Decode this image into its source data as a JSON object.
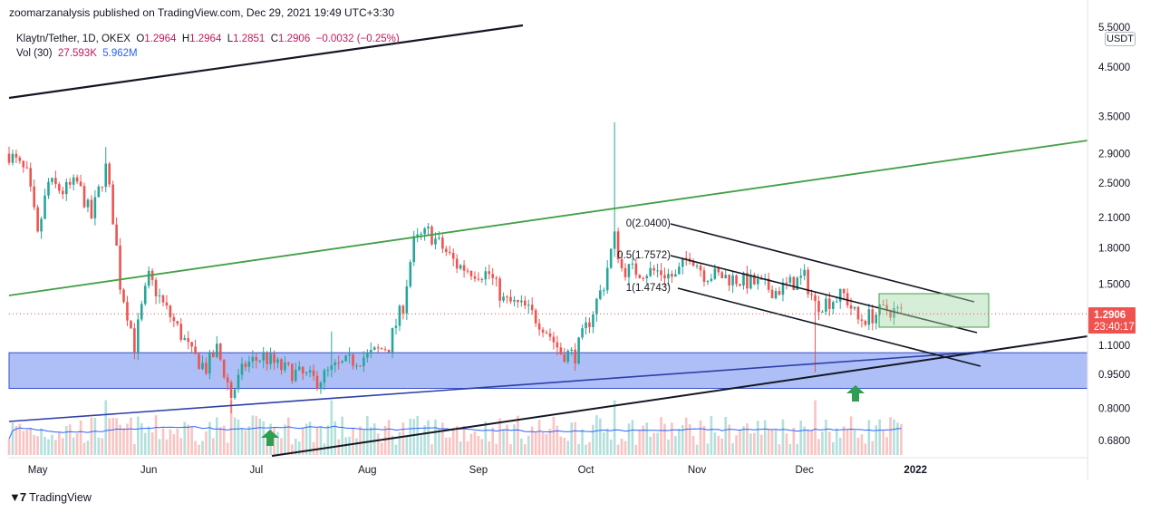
{
  "header": {
    "published": "zoomarzanalysis published on TradingView.com, Dec 29, 2021 19:49 UTC+3:30"
  },
  "legend": {
    "symbol": "Klaytn/Tether, 1D, OKEX",
    "open_k": "O",
    "open_v": "1.2964",
    "high_k": "H",
    "high_v": "1.2964",
    "low_k": "L",
    "low_v": "1.2851",
    "close_k": "C",
    "close_v": "1.2906",
    "change": "−0.0032 (−0.25%)",
    "vol_label": "Vol (30)",
    "vol_value": "27.593K",
    "vol_ma": "5.962M"
  },
  "currency": "USDT",
  "brand": "TradingView",
  "colors": {
    "up": "#26a69a",
    "down": "#ef5350",
    "zone": "#9fb4f5",
    "green_line": "#43a047",
    "blue_line": "#2e3fa8",
    "vol_ma": "#2962ff",
    "price_tag": "#ef5350"
  },
  "chart_data": {
    "type": "candlestick",
    "y_scale": "log",
    "ylim": [
      0.61,
      5.6
    ],
    "x_tick_labels": [
      "May",
      "Jun",
      "Jul",
      "Aug",
      "Sep",
      "Oct",
      "Nov",
      "Dec",
      "2022"
    ],
    "y_tick_labels": [
      "5.5000",
      "4.5000",
      "3.5000",
      "2.9000",
      "2.5000",
      "2.1000",
      "1.8000",
      "1.5000",
      "1.1000",
      "0.9500",
      "0.8000",
      "0.6800"
    ],
    "y_tick_values": [
      5.5,
      4.5,
      3.5,
      2.9,
      2.5,
      2.1,
      1.8,
      1.5,
      1.1,
      0.95,
      0.8,
      0.68
    ],
    "last_price": {
      "label": "1.2906",
      "value": 1.2906,
      "countdown": "23:40:17"
    },
    "fibonacci": [
      {
        "label": "0(2.0400)",
        "value": 2.04
      },
      {
        "label": "0.5(1.7572)",
        "value": 1.7572
      },
      {
        "label": "1(1.4743)",
        "value": 1.4743
      }
    ],
    "support_zone": {
      "low": 0.885,
      "high": 1.06
    },
    "price_path": [
      [
        "2021-04-23",
        2.9
      ],
      [
        "2021-04-28",
        2.6
      ],
      [
        "2021-05-01",
        1.9
      ],
      [
        "2021-05-04",
        2.5
      ],
      [
        "2021-05-08",
        2.4
      ],
      [
        "2021-05-12",
        2.5
      ],
      [
        "2021-05-16",
        2.1
      ],
      [
        "2021-05-20",
        2.7
      ],
      [
        "2021-05-24",
        1.5
      ],
      [
        "2021-05-28",
        1.1
      ],
      [
        "2021-06-01",
        1.55
      ],
      [
        "2021-06-05",
        1.35
      ],
      [
        "2021-06-09",
        1.2
      ],
      [
        "2021-06-13",
        1.05
      ],
      [
        "2021-06-17",
        0.98
      ],
      [
        "2021-06-20",
        1.08
      ],
      [
        "2021-06-24",
        0.85
      ],
      [
        "2021-06-28",
        1.0
      ],
      [
        "2021-07-03",
        1.04
      ],
      [
        "2021-07-08",
        0.98
      ],
      [
        "2021-07-13",
        0.95
      ],
      [
        "2021-07-18",
        0.92
      ],
      [
        "2021-07-23",
        0.98
      ],
      [
        "2021-07-28",
        1.02
      ],
      [
        "2021-08-02",
        1.05
      ],
      [
        "2021-08-07",
        1.1
      ],
      [
        "2021-08-11",
        1.35
      ],
      [
        "2021-08-14",
        1.85
      ],
      [
        "2021-08-18",
        1.95
      ],
      [
        "2021-08-22",
        1.8
      ],
      [
        "2021-08-26",
        1.65
      ],
      [
        "2021-08-31",
        1.6
      ],
      [
        "2021-09-04",
        1.58
      ],
      [
        "2021-09-08",
        1.38
      ],
      [
        "2021-09-14",
        1.33
      ],
      [
        "2021-09-19",
        1.22
      ],
      [
        "2021-09-24",
        1.06
      ],
      [
        "2021-09-28",
        1.05
      ],
      [
        "2021-10-02",
        1.25
      ],
      [
        "2021-10-06",
        1.5
      ],
      [
        "2021-10-09",
        1.9
      ],
      [
        "2021-10-11",
        1.62
      ],
      [
        "2021-10-16",
        1.6
      ],
      [
        "2021-10-21",
        1.6
      ],
      [
        "2021-10-26",
        1.55
      ],
      [
        "2021-10-30",
        1.75
      ],
      [
        "2021-11-03",
        1.58
      ],
      [
        "2021-11-08",
        1.56
      ],
      [
        "2021-11-13",
        1.53
      ],
      [
        "2021-11-18",
        1.5
      ],
      [
        "2021-11-23",
        1.45
      ],
      [
        "2021-11-27",
        1.5
      ],
      [
        "2021-12-01",
        1.55
      ],
      [
        "2021-12-04",
        1.35
      ],
      [
        "2021-12-08",
        1.38
      ],
      [
        "2021-12-12",
        1.42
      ],
      [
        "2021-12-16",
        1.25
      ],
      [
        "2021-12-20",
        1.28
      ],
      [
        "2021-12-24",
        1.32
      ],
      [
        "2021-12-28",
        1.3
      ]
    ]
  }
}
